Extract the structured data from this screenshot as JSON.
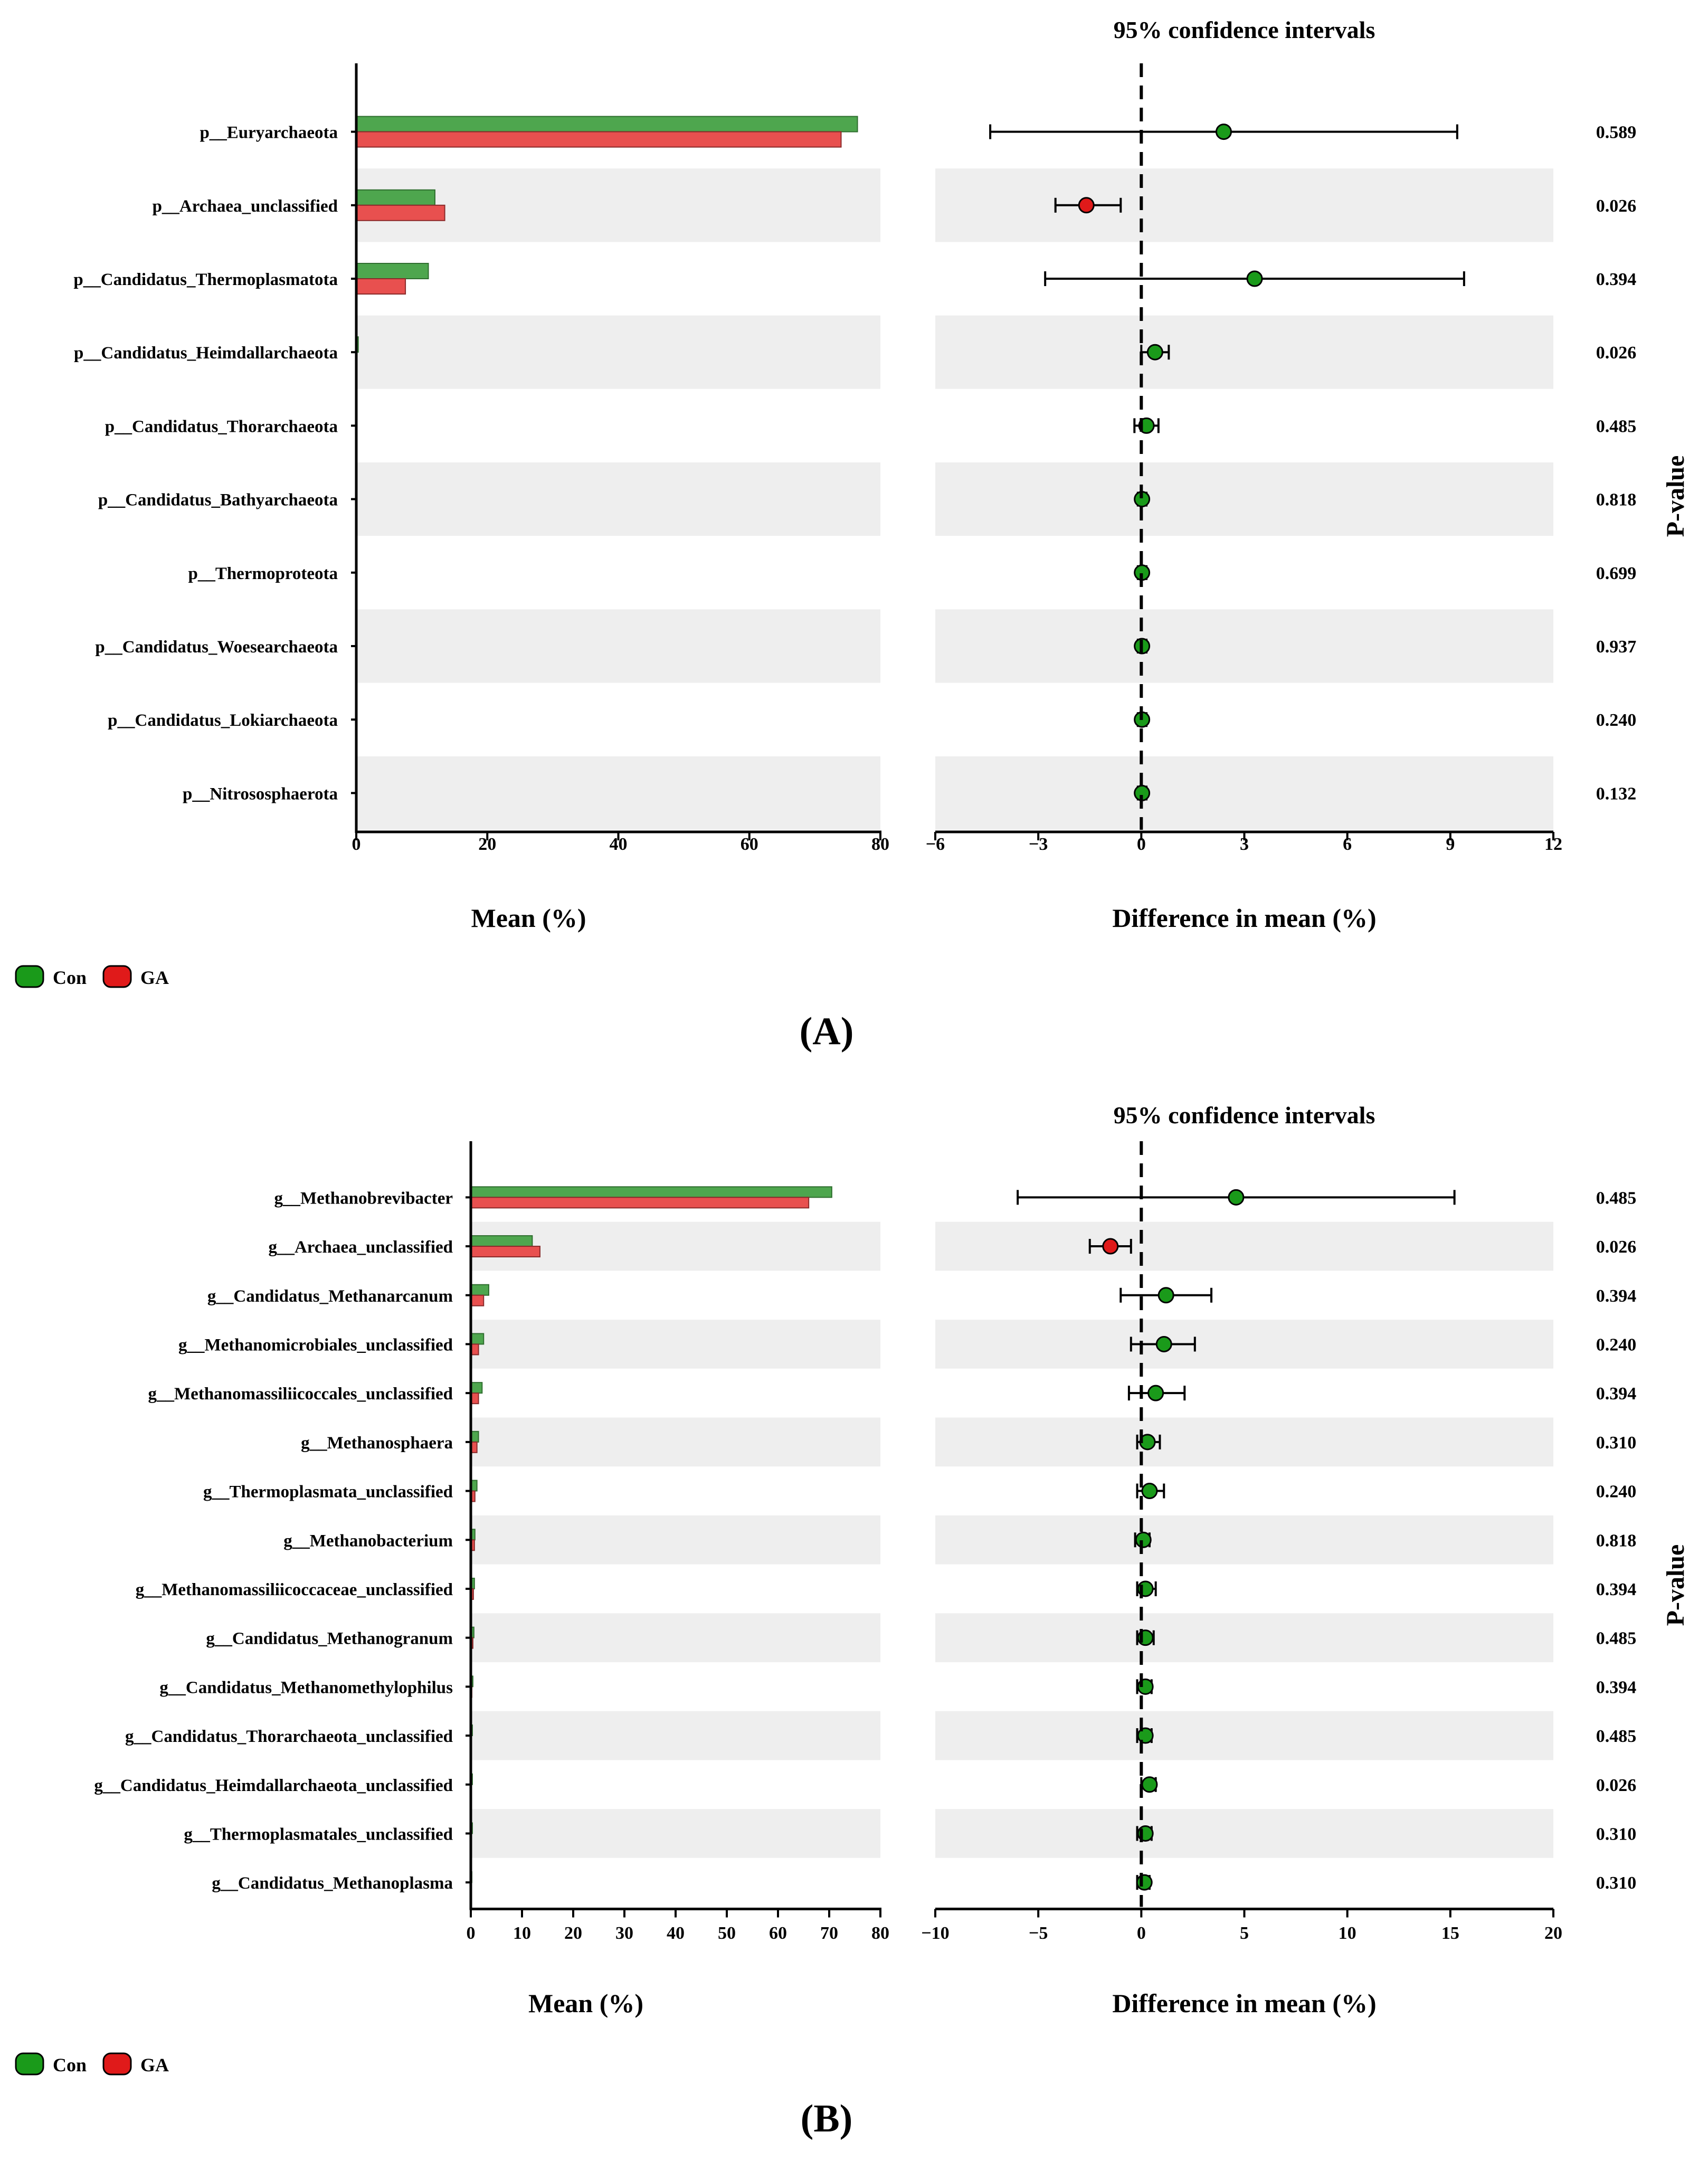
{
  "colors": {
    "con": "#4ea64e",
    "ga": "#e8504f",
    "con_dot": "#1a9a1a",
    "ga_dot": "#e01a1a",
    "band": "#eeeeee"
  },
  "chart_data": [
    {
      "panel_label": "(A)",
      "type": "bar",
      "categories": [
        "p__Euryarchaeota",
        "p__Archaea_unclassified",
        "p__Candidatus_Thermoplasmatota",
        "p__Candidatus_Heimdallarchaeota",
        "p__Candidatus_Thorarchaeota",
        "p__Candidatus_Bathyarchaeota",
        "p__Thermoproteota",
        "p__Candidatus_Woesearchaeota",
        "p__Candidatus_Lokiarchaeota",
        "p__Nitrososphaerota"
      ],
      "series": [
        {
          "name": "Con",
          "values": [
            76.5,
            12,
            11,
            0.3,
            0.1,
            0.05,
            0.05,
            0.03,
            0.03,
            0.02
          ]
        },
        {
          "name": "GA",
          "values": [
            74,
            13.5,
            7.5,
            0.1,
            0.05,
            0.05,
            0.05,
            0.03,
            0.03,
            0.02
          ]
        }
      ],
      "xlabel": "Mean (%)",
      "xlim": [
        0,
        80
      ],
      "xticks": [
        "0",
        "20",
        "40",
        "60",
        "80"
      ],
      "ci": {
        "title": "95% confidence intervals",
        "xlabel": "Difference in mean (%)",
        "xlim": [
          -6,
          12
        ],
        "xticks": [
          "−6",
          "−3",
          "0",
          "3",
          "6",
          "9",
          "12"
        ],
        "diff": [
          2.4,
          -1.6,
          3.3,
          0.4,
          0.15,
          0.02,
          0.02,
          0.02,
          0.02,
          0.02
        ],
        "low": [
          -4.4,
          -2.5,
          -2.8,
          0.0,
          -0.2,
          -0.1,
          -0.1,
          -0.1,
          -0.1,
          -0.1
        ],
        "high": [
          9.2,
          -0.6,
          9.4,
          0.8,
          0.5,
          0.15,
          0.15,
          0.15,
          0.15,
          0.15
        ],
        "group": [
          "Con",
          "GA",
          "Con",
          "Con",
          "Con",
          "Con",
          "Con",
          "Con",
          "Con",
          "Con"
        ]
      },
      "pvalue_label": "P-value",
      "pvalues": [
        "0.589",
        "0.026",
        "0.394",
        "0.026",
        "0.485",
        "0.818",
        "0.699",
        "0.937",
        "0.240",
        "0.132"
      ],
      "legend": [
        "Con",
        "GA"
      ]
    },
    {
      "panel_label": "(B)",
      "type": "bar",
      "categories": [
        "g__Methanobrevibacter",
        "g__Archaea_unclassified",
        "g__Candidatus_Methanarcanum",
        "g__Methanomicrobiales_unclassified",
        "g__Methanomassiliicoccales_unclassified",
        "g__Methanosphaera",
        "g__Thermoplasmata_unclassified",
        "g__Methanobacterium",
        "g__Methanomassiliicoccaceae_unclassified",
        "g__Candidatus_Methanogranum",
        "g__Candidatus_Methanomethylophilus",
        "g__Candidatus_Thorarchaeota_unclassified",
        "g__Candidatus_Heimdallarchaeota_unclassified",
        "g__Thermoplasmatales_unclassified",
        "g__Candidatus_Methanoplasma"
      ],
      "series": [
        {
          "name": "Con",
          "values": [
            70.5,
            12,
            3.5,
            2.5,
            2.2,
            1.5,
            1.2,
            0.8,
            0.7,
            0.6,
            0.4,
            0.3,
            0.3,
            0.3,
            0.2
          ]
        },
        {
          "name": "GA",
          "values": [
            66,
            13.5,
            2.5,
            1.5,
            1.5,
            1.2,
            0.8,
            0.7,
            0.5,
            0.4,
            0.2,
            0.1,
            0.05,
            0.1,
            0.05
          ]
        }
      ],
      "xlabel": "Mean (%)",
      "xlim": [
        0,
        80
      ],
      "xticks": [
        "0",
        "10",
        "20",
        "30",
        "40",
        "50",
        "60",
        "70",
        "80"
      ],
      "ci": {
        "title": "95% confidence intervals",
        "xlabel": "Difference in mean (%)",
        "xlim": [
          -10,
          20
        ],
        "xticks": [
          "−10",
          "−5",
          "0",
          "5",
          "10",
          "15",
          "20"
        ],
        "diff": [
          4.6,
          -1.5,
          1.2,
          1.1,
          0.7,
          0.3,
          0.4,
          0.1,
          0.2,
          0.2,
          0.2,
          0.2,
          0.4,
          0.2,
          0.15
        ],
        "low": [
          -6.0,
          -2.5,
          -1.0,
          -0.5,
          -0.6,
          -0.2,
          -0.2,
          -0.3,
          -0.2,
          -0.2,
          -0.2,
          -0.2,
          0.0,
          -0.2,
          -0.2
        ],
        "high": [
          15.2,
          -0.5,
          3.4,
          2.6,
          2.1,
          0.9,
          1.1,
          0.4,
          0.7,
          0.6,
          0.5,
          0.5,
          0.7,
          0.5,
          0.4
        ],
        "group": [
          "Con",
          "GA",
          "Con",
          "Con",
          "Con",
          "Con",
          "Con",
          "Con",
          "Con",
          "Con",
          "Con",
          "Con",
          "Con",
          "Con",
          "Con"
        ]
      },
      "pvalue_label": "P-value",
      "pvalues": [
        "0.485",
        "0.026",
        "0.394",
        "0.240",
        "0.394",
        "0.310",
        "0.240",
        "0.818",
        "0.394",
        "0.485",
        "0.394",
        "0.485",
        "0.026",
        "0.310",
        "0.310"
      ],
      "legend": [
        "Con",
        "GA"
      ]
    }
  ]
}
